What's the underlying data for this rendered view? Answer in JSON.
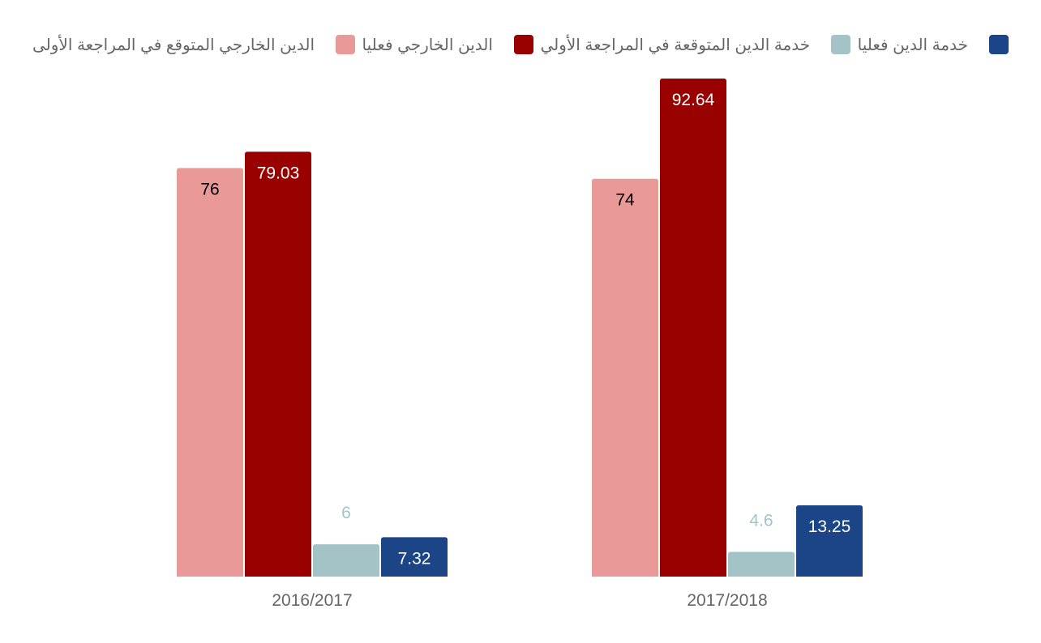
{
  "legend": [
    {
      "label": "خدمة الدين فعليا",
      "color": "#1c4587"
    },
    {
      "label": "خدمة الدين المتوقعة في المراجعة الأولي",
      "color": "#a3c3c7"
    },
    {
      "label": "الدين الخارجي فعليا",
      "color": "#990000"
    },
    {
      "label": "الدين الخارجي المتوقع في المراجعة الأولى",
      "color": "#ea9999"
    }
  ],
  "chart_data": {
    "type": "bar",
    "categories": [
      "2016/2017",
      "2017/2018"
    ],
    "series": [
      {
        "name": "الدين الخارجي المتوقع في المراجعة الأولى",
        "color": "#ea9999",
        "label_color": "#000000",
        "values": [
          76,
          74
        ]
      },
      {
        "name": "الدين الخارجي فعليا",
        "color": "#990000",
        "label_color": "#ffffff",
        "values": [
          79.03,
          92.64
        ]
      },
      {
        "name": "خدمة الدين المتوقعة في المراجعة الأولي",
        "color": "#a3c3c7",
        "label_color": "#000000",
        "values": [
          6,
          4.6
        ]
      },
      {
        "name": "خدمة الدين فعليا",
        "color": "#1c4587",
        "label_color": "#ffffff",
        "values": [
          7.32,
          13.25
        ]
      }
    ],
    "value_labels": [
      [
        "76",
        "74"
      ],
      [
        "79.03",
        "92.64"
      ],
      [
        "6",
        "4.6"
      ],
      [
        "7.32",
        "13.25"
      ]
    ],
    "ylim": [
      0,
      100
    ],
    "grid": false,
    "legend_position": "top"
  }
}
